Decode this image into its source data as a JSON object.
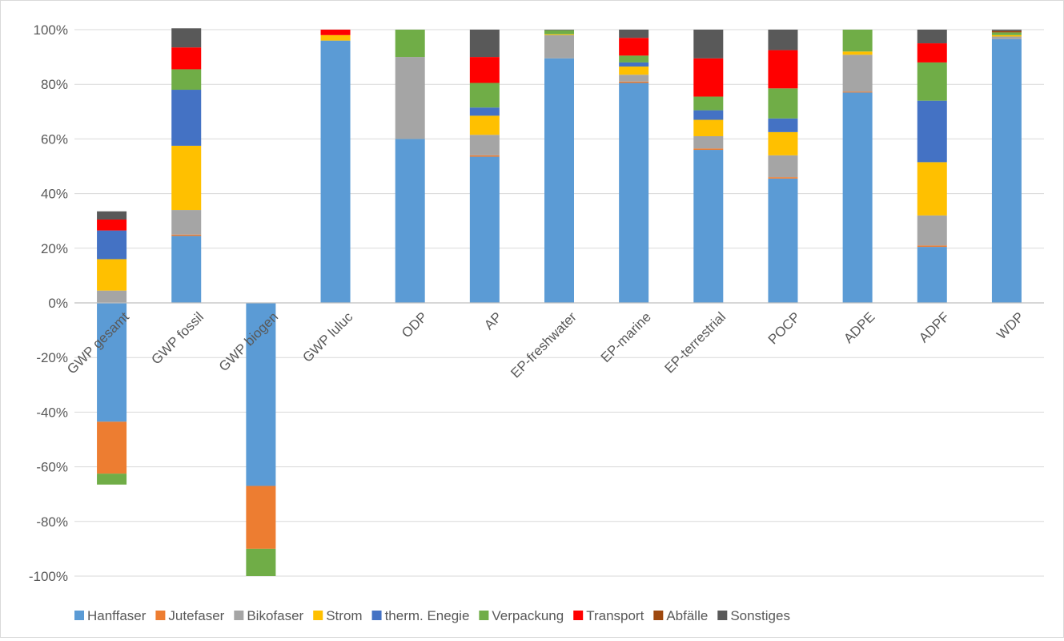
{
  "chart_data": {
    "type": "bar",
    "stacked": true,
    "title": "",
    "xlabel": "",
    "ylabel": "",
    "ylim": [
      -100,
      100
    ],
    "yticks": [
      "100%",
      "80%",
      "60%",
      "40%",
      "20%",
      "0%",
      "-20%",
      "-40%",
      "-60%",
      "-80%",
      "-100%"
    ],
    "grid": true,
    "legend_position": "bottom",
    "categories": [
      "GWP gesamt",
      "GWP fossil",
      "GWP biogen",
      "GWP luluc",
      "ODP",
      "AP",
      "EP-freshwater",
      "EP-marine",
      "EP-terrestrial",
      "POCP",
      "ADPE",
      "ADPF",
      "WDP"
    ],
    "series": [
      {
        "name": "Hanffaser",
        "color": "#5b9bd5",
        "values": [
          -43.5,
          24.5,
          -67,
          96,
          60,
          53.5,
          89.5,
          80.5,
          56,
          45.5,
          77,
          20.5,
          96.5
        ]
      },
      {
        "name": "Jutefaser",
        "color": "#ed7d31",
        "values": [
          -19,
          0.5,
          -23,
          0,
          0,
          0.5,
          0,
          0.5,
          0.5,
          0.5,
          0.3,
          0.5,
          0
        ]
      },
      {
        "name": "Bikofaser",
        "color": "#a5a5a5",
        "values": [
          4.5,
          9,
          0,
          0,
          30,
          7.5,
          8.5,
          2.5,
          4.5,
          8,
          13.5,
          11,
          1
        ]
      },
      {
        "name": "Strom",
        "color": "#ffc000",
        "values": [
          11.5,
          23.5,
          0,
          2,
          0,
          7,
          0.3,
          3,
          6,
          8.5,
          1.2,
          19.5,
          0.5
        ]
      },
      {
        "name": "therm. Enegie",
        "color": "#4472c4",
        "values": [
          10.5,
          20.5,
          0,
          0,
          0,
          3,
          0,
          1.5,
          3.5,
          5,
          0,
          22.5,
          0
        ]
      },
      {
        "name": "Verpackung",
        "color": "#70ad47",
        "values": [
          -4,
          7.5,
          -10,
          0,
          10,
          9,
          1.5,
          2.5,
          5,
          11,
          8,
          14,
          1
        ]
      },
      {
        "name": "Transport",
        "color": "#ff0000",
        "values": [
          4,
          8,
          0,
          2,
          0,
          9.5,
          0,
          6.5,
          14,
          14,
          0,
          7,
          0
        ]
      },
      {
        "name": "Abfälle",
        "color": "#9e480e",
        "values": [
          0,
          0,
          0,
          0,
          0,
          0,
          0,
          0,
          0,
          0,
          0,
          0,
          0.5
        ]
      },
      {
        "name": "Sonstiges",
        "color": "#595959",
        "values": [
          3,
          7,
          0,
          0,
          0,
          10,
          0.2,
          3,
          10.5,
          7.5,
          0,
          5,
          0.5
        ]
      }
    ]
  }
}
